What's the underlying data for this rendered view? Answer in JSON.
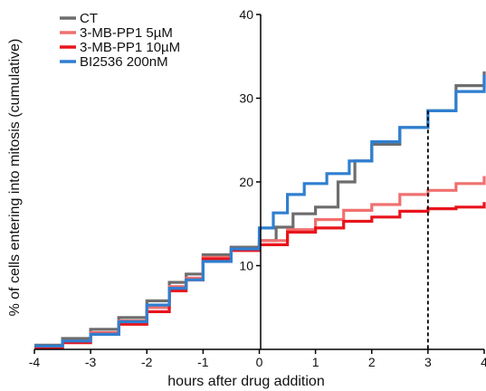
{
  "chart_data": {
    "type": "line",
    "title": "",
    "xlabel": "hours after drug addition",
    "ylabel": "% of cells entering into  mitosis  (cumulative)",
    "xlim": [
      -4,
      4
    ],
    "ylim": [
      0,
      40
    ],
    "xticks": [
      -4,
      -3,
      -2,
      -1,
      0,
      1,
      2,
      3,
      4
    ],
    "xtick_labels": [
      "-4",
      "-3",
      "-2",
      "-1",
      "0",
      "1",
      "2",
      "3",
      "4"
    ],
    "yticks": [
      10,
      20,
      30,
      40
    ],
    "ytick_labels": [
      "10",
      "20",
      "30",
      "40"
    ],
    "grid": false,
    "legend_position": "top-left",
    "reference_line": {
      "x": 3,
      "y": 28.5,
      "style": "dashed"
    },
    "series": [
      {
        "name": "CT",
        "color": "#6d6d6d",
        "x": [
          -4,
          -3.5,
          -3,
          -2.5,
          -2,
          -1.6,
          -1.3,
          -1,
          -0.5,
          0,
          0.3,
          0.6,
          1,
          1.4,
          1.7,
          2,
          2.5,
          3,
          3.5,
          4
        ],
        "y": [
          0.5,
          1.3,
          2.4,
          3.8,
          5.8,
          8.0,
          9.0,
          11.3,
          12.2,
          13.0,
          14.6,
          16.2,
          17.0,
          20.0,
          22.5,
          24.5,
          26.5,
          28.5,
          31.5,
          33.2
        ]
      },
      {
        "name": "3-MB-PP1 5µM",
        "color": "#f07070",
        "x": [
          -4,
          -3.5,
          -3,
          -2.5,
          -2,
          -1.6,
          -1.3,
          -1,
          -0.5,
          0,
          0.5,
          1,
          1.5,
          2,
          2.5,
          3,
          3.5,
          4
        ],
        "y": [
          0.3,
          1.0,
          2.0,
          3.4,
          5.0,
          7.5,
          8.5,
          11.0,
          12.0,
          13.0,
          14.3,
          15.5,
          16.6,
          17.3,
          18.5,
          19.0,
          19.8,
          20.7
        ]
      },
      {
        "name": "3-MB-PP1 10µM",
        "color": "#e8141c",
        "x": [
          -4,
          -3.5,
          -3,
          -2.5,
          -2,
          -1.6,
          -1.3,
          -1,
          -0.5,
          0,
          0.5,
          1,
          1.5,
          2,
          2.5,
          3,
          3.5,
          4
        ],
        "y": [
          0.2,
          0.8,
          1.8,
          3.0,
          4.5,
          7.0,
          8.3,
          10.8,
          11.8,
          12.5,
          14.0,
          14.5,
          15.3,
          15.8,
          16.5,
          16.8,
          17.0,
          17.6
        ]
      },
      {
        "name": "BI2536 200nM",
        "color": "#2f7fd0",
        "x": [
          -4,
          -3.5,
          -3,
          -2.5,
          -2,
          -1.6,
          -1.3,
          -1,
          -0.5,
          0,
          0.25,
          0.5,
          0.8,
          1.2,
          1.6,
          2,
          2.5,
          3,
          3.5,
          4
        ],
        "y": [
          0.4,
          1.0,
          1.8,
          3.3,
          5.3,
          7.3,
          8.3,
          10.5,
          12.0,
          14.5,
          16.3,
          18.5,
          19.8,
          21.0,
          22.5,
          24.8,
          26.5,
          28.5,
          30.8,
          32.8
        ]
      }
    ]
  }
}
